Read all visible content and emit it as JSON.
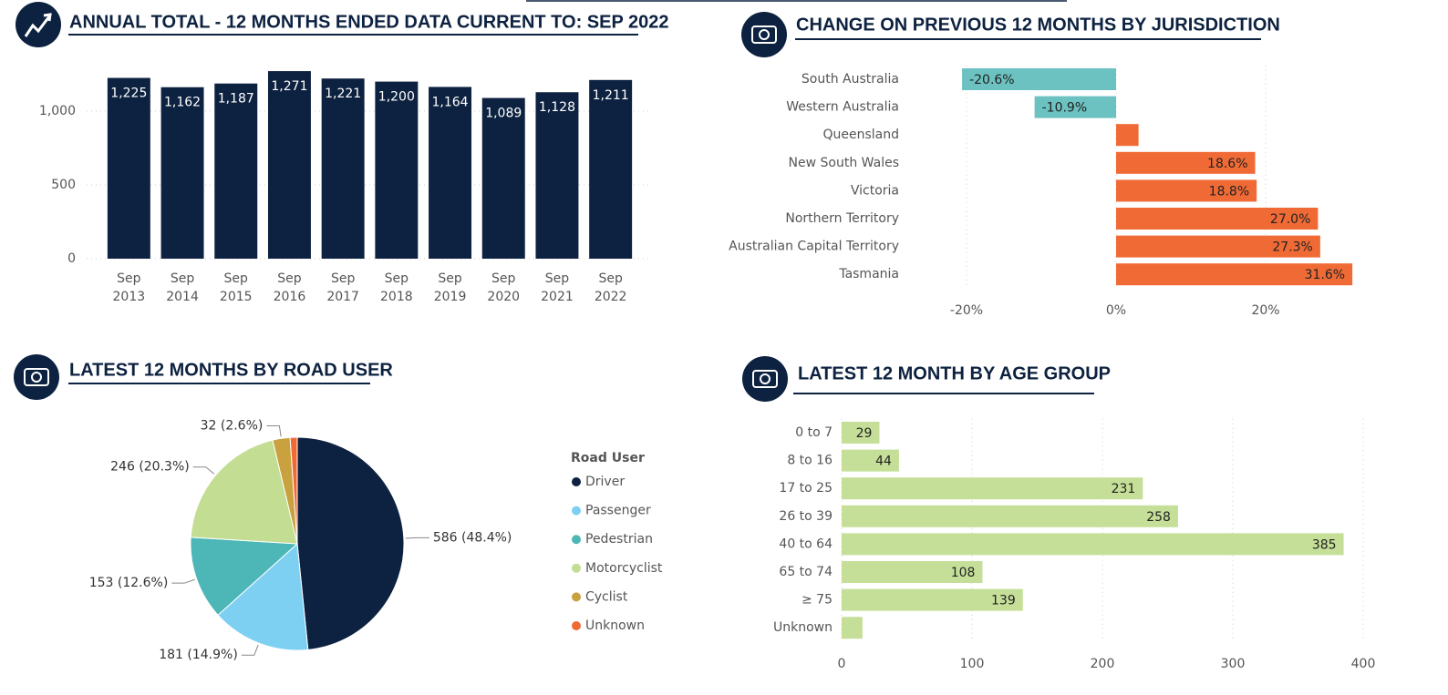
{
  "chart_data": [
    {
      "type": "bar",
      "orientation": "vertical",
      "title": "ANNUAL TOTAL - 12 MONTHS ENDED DATA CURRENT TO: SEP 2022",
      "categories": [
        "Sep 2013",
        "Sep 2014",
        "Sep 2015",
        "Sep 2016",
        "Sep 2017",
        "Sep 2018",
        "Sep 2019",
        "Sep 2020",
        "Sep 2021",
        "Sep 2022"
      ],
      "values": [
        1225,
        1162,
        1187,
        1271,
        1221,
        1200,
        1164,
        1089,
        1128,
        1211
      ],
      "value_labels": [
        "1,225",
        "1,162",
        "1,187",
        "1,271",
        "1,221",
        "1,200",
        "1,164",
        "1,089",
        "1,128",
        "1,211"
      ],
      "color": "#0d2240",
      "ylim": [
        0,
        1290
      ],
      "yticks": [
        0,
        500,
        {
          "value": 1000,
          "label": "1,000"
        }
      ],
      "grid": true
    },
    {
      "type": "bar",
      "orientation": "horizontal",
      "title": "CHANGE ON PREVIOUS 12 MONTHS BY JURISDICTION",
      "categories": [
        "South Australia",
        "Western Australia",
        "Queensland",
        "New South Wales",
        "Victoria",
        "Northern Territory",
        "Australian Capital Territory",
        "Tasmania"
      ],
      "values": [
        -20.6,
        -10.9,
        3.0,
        18.6,
        18.8,
        27.0,
        27.3,
        31.6
      ],
      "value_labels": [
        "-20.6%",
        "-10.9%",
        null,
        "18.6%",
        "18.8%",
        "27.0%",
        "27.3%",
        "31.6%"
      ],
      "color": "#f06a35",
      "negative_color": "#6cc1c1",
      "xlim": [
        -21.5,
        32
      ],
      "xticks": [
        {
          "value": -20,
          "label": "-20%"
        },
        {
          "value": 0,
          "label": "0%"
        },
        {
          "value": 20,
          "label": "20%"
        }
      ],
      "grid": true
    },
    {
      "type": "pie",
      "title": "LATEST 12 MONTHS BY ROAD USER",
      "categories": [
        "Driver",
        "Passenger",
        "Pedestrian",
        "Motorcyclist",
        "Cyclist",
        "Unknown"
      ],
      "values": [
        586,
        181,
        153,
        246,
        32,
        13
      ],
      "value_labels": [
        "586 (48.4%)",
        "181 (14.9%)",
        "153 (12.6%)",
        "246 (20.3%)",
        "32 (2.6%)",
        null
      ],
      "colors": [
        "#0d2240",
        "#7dd0f2",
        "#4db6b6",
        "#c3dd92",
        "#c9a23f",
        "#f06a35"
      ],
      "legend_title": "Road User"
    },
    {
      "type": "bar",
      "orientation": "horizontal",
      "title": "LATEST 12 MONTH BY AGE GROUP",
      "categories": [
        "0 to 7",
        "8 to 16",
        "17 to 25",
        "26 to 39",
        "40 to 64",
        "65 to 74",
        "≥ 75",
        "Unknown"
      ],
      "values": [
        29,
        44,
        231,
        258,
        385,
        108,
        139,
        16
      ],
      "value_labels": [
        "29",
        "44",
        "231",
        "258",
        "385",
        "108",
        "139",
        null
      ],
      "color": "#c5df98",
      "xlim": [
        0,
        400
      ],
      "xticks": [
        0,
        100,
        200,
        300,
        400
      ],
      "grid": true
    }
  ]
}
